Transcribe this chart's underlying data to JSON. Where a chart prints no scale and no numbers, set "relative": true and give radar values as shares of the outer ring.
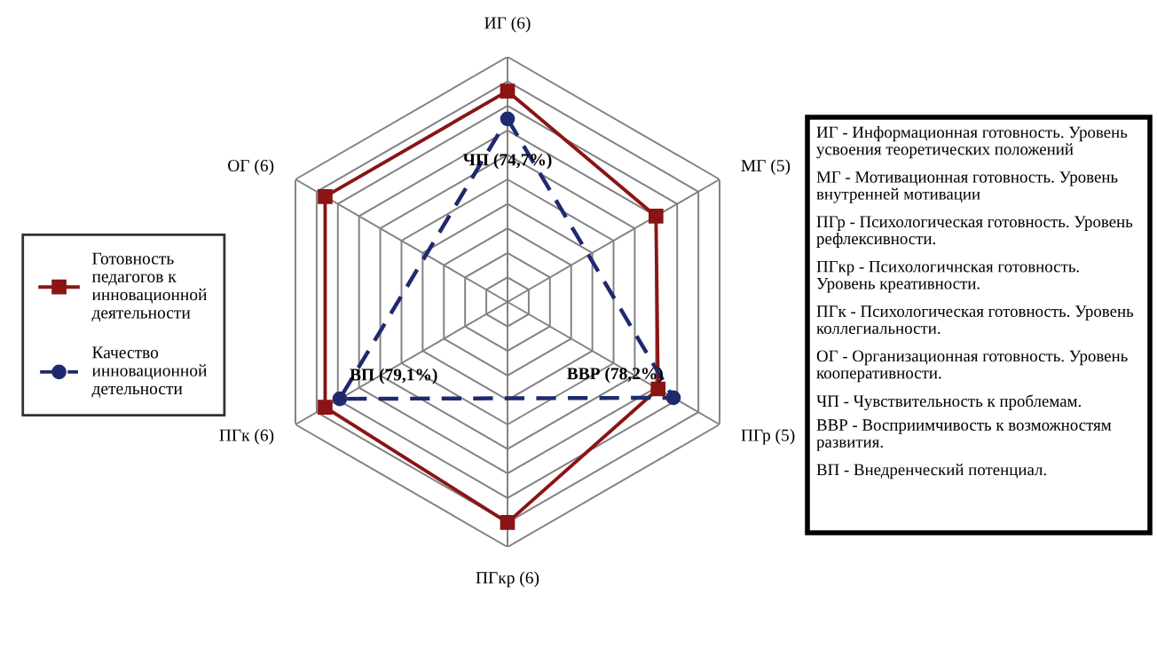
{
  "chart_data": {
    "type": "radar",
    "relative": true,
    "categories": [
      "ИГ (6)",
      "МГ (5)",
      "ПГр (5)",
      "ПГкр (6)",
      "ПГк (6)",
      "ОГ (6)"
    ],
    "series": [
      {
        "name": "Готовность педагогов к инновационной деятельности",
        "color": "#8b1414",
        "marker": "square",
        "line_style": "solid",
        "values": [
          0.86,
          0.7,
          0.71,
          0.9,
          0.86,
          0.86
        ]
      },
      {
        "name": "Качество инновационной детельности",
        "color": "#1f2a6e",
        "marker": "circle",
        "line_style": "dashed",
        "values": [
          0.747,
          null,
          0.782,
          null,
          0.791,
          null
        ]
      }
    ],
    "annotations": [
      {
        "text": "ЧП (74,7%)",
        "x": "ИГ (6)"
      },
      {
        "text": "ВВР (78,2%)",
        "x": "ПГр (5)"
      },
      {
        "text": "ВП (79,1%)",
        "x": "ПГк (6)"
      },
      "ИГ - Информационная готовность. Уровень усвоения теоретических положений",
      "МГ - Мотивационная готовность. Уровень внутренней мотивации",
      "ПГр - Психологическая готовность. Уровень рефлексивности.",
      "ПГкр - Психологичнская готовность. Уровень креативности.",
      "ПГк - Психологическая готовность. Уровень коллегиальности.",
      "ОГ - Организационная готовность. Уровень кооперативности.",
      "ЧП - Чувствительность к проблемам.",
      "ВВР - Восприимчивость к возможностям развития.",
      "ВП - Внедренческий потенциал."
    ],
    "grid": true,
    "legend": "left"
  }
}
